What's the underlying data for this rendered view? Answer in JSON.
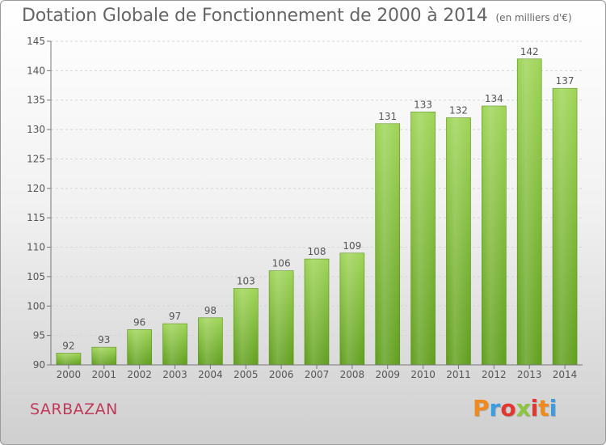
{
  "title": "Dotation Globale de Fonctionnement de 2000 à 2014",
  "unit_note": "(en milliers d'€)",
  "commune": "SARBAZAN",
  "logo": {
    "letters": [
      "P",
      "r",
      "o",
      "x",
      "i",
      "t",
      "i"
    ],
    "colors": [
      "#f08a1c",
      "#3d9be0",
      "#e2362f",
      "#8cc63f",
      "#e2362f",
      "#f08a1c",
      "#3d9be0"
    ]
  },
  "chart_data": {
    "type": "bar",
    "title": "Dotation Globale de Fonctionnement de 2000 à 2014",
    "subtitle": "(en milliers d'€)",
    "categories": [
      "2000",
      "2001",
      "2002",
      "2003",
      "2004",
      "2005",
      "2006",
      "2007",
      "2008",
      "2009",
      "2010",
      "2011",
      "2012",
      "2013",
      "2014"
    ],
    "values": [
      92,
      93,
      96,
      97,
      98,
      103,
      106,
      108,
      109,
      131,
      133,
      132,
      134,
      142,
      137
    ],
    "ylim": [
      90,
      145
    ],
    "yticks": [
      90,
      95,
      100,
      105,
      110,
      115,
      120,
      125,
      130,
      135,
      140,
      145
    ],
    "grid": true,
    "bar_color": "#8cc63f",
    "data_labels": true
  }
}
